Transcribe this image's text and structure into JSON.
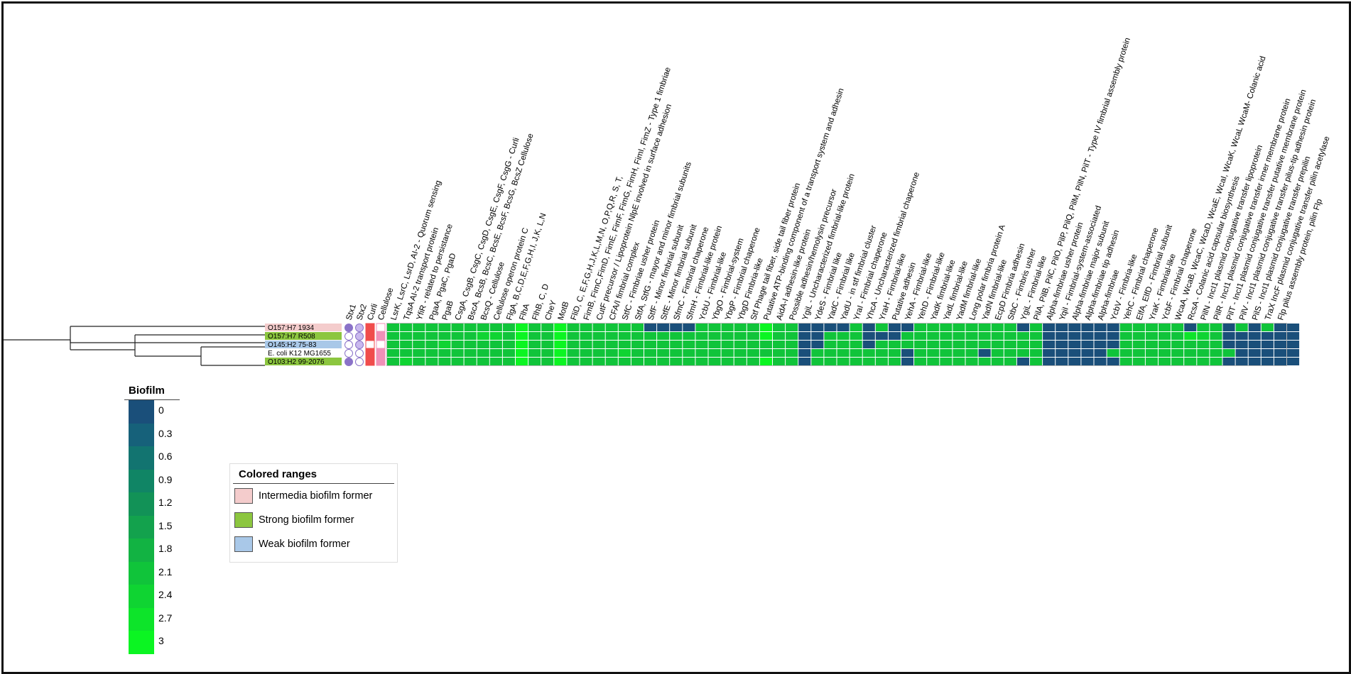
{
  "strains": [
    {
      "name": "O157:H7 1934",
      "range": "Intermedia biofilm former",
      "color": "#f4cccc"
    },
    {
      "name": "O157:H7 R508",
      "range": "Strong biofilm former",
      "color": "#8cc63f"
    },
    {
      "name": "O145:H2 75-83",
      "range": "Weak biofilm former",
      "color": "#a9c8e8"
    },
    {
      "name": "E. coli K12 MG1655",
      "range": "",
      "color": "#ffffff"
    },
    {
      "name": "O103:H2 99-2076",
      "range": "Strong biofilm former",
      "color": "#8cc63f"
    }
  ],
  "toxin_columns": [
    "Stx1",
    "Stx2",
    "Curli",
    "Cellulose"
  ],
  "toxin_values": [
    {
      "Stx1": "filled",
      "Stx2": "light",
      "Curli": "filled",
      "Cellulose": "empty"
    },
    {
      "Stx1": "empty",
      "Stx2": "light",
      "Curli": "filled",
      "Cellulose": "filled"
    },
    {
      "Stx1": "empty",
      "Stx2": "light",
      "Curli": "empty",
      "Cellulose": "empty"
    },
    {
      "Stx1": "empty",
      "Stx2": "empty",
      "Curli": "filled",
      "Cellulose": "filled"
    },
    {
      "Stx1": "filled",
      "Stx2": "empty",
      "Curli": "filled",
      "Cellulose": "filled"
    }
  ],
  "gene_columns": [
    "LsrK, LsrC, LsrD, AI-2 - Quorum sensing",
    "TqsA AI-2 transport protein",
    "YfiR - related to persistance",
    "PgaA, PgaC, PgaD",
    "PgaB",
    "CsgA, CsgB, CsgC, CsgD, CsgE, CsgF, CsgG - Curli",
    "BscA, BcsB, BcsC, BcsE, BcsF, BcsG, BcsZ Cellulose",
    "BcsQ - Cellulose",
    "Cellulose operon protein C",
    "FlgA, B,C,D,E,F,G,H,I, J,K, L,N",
    "FlhA",
    "FlhB, C, D",
    "CheY",
    "MotB",
    "FliD, C, E,F,G,H,J,K,L,M,N, O,P,Q,R, S, T,",
    "FimB, FimC,FimD, FimE, FimF, FimG, FimH, FimI, FimZ - Type 1 fimbriae",
    "CutF precursor / Lipoprotein NlpE involved in surface adhesion",
    "CFA/I fimbrial complex",
    "StfC - Fimbriae usher protein",
    "StfA, StfG - mayor and minor fimbrial subunits",
    "StfF - Minor fimbrial subunit",
    "StfE - Minor fimbrial subunit",
    "SfmC - Fimbrial chaperone",
    "SfmH - Fimbrial-like protein",
    "YcbU - Fimbrial-like",
    "YbgO - Fimbrial-system",
    "YbgP - Fimbrial chaperone",
    "YbgD Fimbria-like",
    "Stf Phage tail fiber, side tail fiber protein",
    "Putative ATP-binding component of a transport system and adhesin",
    "AidA-I adhesin-like protein",
    "Possible adhesin/hemolysin precursor",
    "YgiL - Uncharacterized fimbrial-like protein",
    "YdeS - Fimbrial like",
    "YadC - Fimbrial like",
    "YadU - in stf fimbrial cluster",
    "YraI - Fimbrial chaperone",
    "YhcA - Uncharacterized fimbrial chaperone",
    "YraH - Fimbrial-like",
    "Putative adhesin",
    "YehA - Fimbrial-like",
    "YehD - Fimbrial-like",
    "YadK fimbrial-like",
    "YadL fimbrial-like",
    "YadM fimbrial-like",
    "Long polar fimbria protein A",
    "YadN fimbrial-like",
    "EcpD Fimbria adhesin",
    "StbC - Fimbris usher",
    "YgiL - Fimbrial-like",
    "PilA, PilB, PilC, PilO, PilP, PilQ, PilM, PilN, PilT - Type IV fimbrial assembly protein",
    "Alpha-fimbriae usher protein",
    "YqiI - Fimbrial-system-associated",
    "Alpha-fimbriae major subunit",
    "Alpha-fimbriae tip adhesin",
    "Alpha-fimbriae",
    "YcbV - Fimbria-like",
    "YehC - Fimbrial chaperone",
    "ElfA, ElfD - Fimbrial subunit",
    "YraK - Fimbrial-like",
    "YcbF - Fimbrial chaperone",
    "WcaA, WcaB, WcaC, WcaD, WcaE, WcaI, WcaK, WcaL WcaM- Colanic acid",
    "RcsA - Colanic acid capsular biosynthesis",
    "PilN - IncI1 plasmid conjugative transfer lipoprotein",
    "PilR - IncI1 plasmid conjugative transfer inner membrane protein",
    "PilT - IncI1 plasmid conjugative transfer putative membrane protein",
    "PilV - IncI1 plasmid conjugative transfer pilus-tip adhesin protein",
    "PilS - IncI1 plasmid conjugative transfer prepilin",
    "TraX IncF plasmid conjugative transfer pilin acetylase",
    "Flp pilus assembly protein, pilin Flp"
  ],
  "heatmap_values": [
    [
      2,
      2,
      2,
      2,
      2,
      2,
      2,
      2,
      2,
      2,
      3,
      2,
      2,
      3,
      2,
      2,
      2,
      2,
      2,
      2,
      2,
      2,
      2,
      2,
      2,
      2,
      2,
      2,
      2,
      2,
      2,
      2,
      2,
      2,
      2,
      2,
      2,
      2,
      2,
      2,
      2,
      2,
      2,
      2,
      2,
      2,
      2,
      2,
      2,
      2,
      2,
      2,
      2,
      2,
      2,
      2,
      2,
      2,
      2,
      2,
      2,
      2,
      2,
      2,
      2,
      2,
      2,
      2,
      2,
      2,
      2
    ],
    [
      2,
      2,
      2,
      2,
      2,
      2,
      2,
      2,
      2,
      2,
      3,
      2,
      2,
      3,
      2,
      2,
      2,
      2,
      2,
      2,
      2,
      2,
      2,
      2,
      2,
      2,
      2,
      2,
      2,
      2,
      2,
      2,
      2,
      2,
      2,
      2,
      2,
      2,
      2,
      2,
      2,
      2,
      2,
      2,
      2,
      2,
      2,
      2,
      2,
      2,
      2,
      2,
      2,
      2,
      2,
      2,
      2,
      2,
      2,
      2,
      2,
      2,
      2,
      2,
      2,
      2,
      2,
      2,
      2,
      2,
      2
    ],
    [
      2,
      2,
      2,
      2,
      2,
      2,
      2,
      2,
      2,
      2,
      3,
      2,
      2,
      3,
      2,
      2,
      2,
      2,
      2,
      2,
      2,
      2,
      2,
      2,
      2,
      2,
      2,
      2,
      2,
      2,
      2,
      2,
      2,
      2,
      2,
      2,
      2,
      2,
      2,
      2,
      2,
      2,
      2,
      2,
      2,
      2,
      2,
      2,
      2,
      2,
      2,
      2,
      2,
      2,
      2,
      2,
      2,
      2,
      2,
      2,
      2,
      2,
      2,
      2,
      2,
      2,
      2,
      2,
      2,
      2,
      2
    ],
    [
      2,
      2,
      2,
      2,
      2,
      2,
      2,
      2,
      2,
      2,
      3,
      2,
      2,
      3,
      2,
      2,
      2,
      2,
      2,
      2,
      2,
      2,
      2,
      2,
      2,
      2,
      2,
      2,
      2,
      2,
      2,
      2,
      2,
      2,
      2,
      2,
      2,
      2,
      2,
      2,
      2,
      2,
      2,
      2,
      2,
      2,
      2,
      2,
      2,
      2,
      2,
      2,
      2,
      2,
      2,
      2,
      2,
      2,
      2,
      2,
      2,
      2,
      2,
      2,
      2,
      2,
      2,
      2,
      2,
      2,
      2
    ],
    [
      2,
      2,
      2,
      2,
      2,
      2,
      2,
      2,
      2,
      2,
      3,
      2,
      2,
      3,
      2,
      2,
      2,
      2,
      2,
      2,
      2,
      2,
      2,
      2,
      2,
      2,
      2,
      2,
      2,
      2,
      2,
      2,
      2,
      2,
      2,
      2,
      2,
      2,
      2,
      2,
      2,
      2,
      2,
      2,
      2,
      2,
      2,
      2,
      2,
      2,
      2,
      2,
      2,
      2,
      2,
      2,
      2,
      2,
      2,
      2,
      2,
      2,
      2,
      2,
      2,
      2,
      2,
      2,
      2,
      2,
      2
    ]
  ],
  "heatmap_overrides": [
    {
      "r": 0,
      "cells": [
        [
          20,
          0
        ],
        [
          21,
          0
        ],
        [
          22,
          0
        ],
        [
          23,
          0
        ],
        [
          29,
          3
        ],
        [
          32,
          0
        ],
        [
          33,
          0
        ],
        [
          34,
          0
        ],
        [
          35,
          0
        ],
        [
          37,
          0
        ],
        [
          39,
          0
        ],
        [
          40,
          0
        ],
        [
          49,
          0
        ],
        [
          51,
          0
        ],
        [
          52,
          0
        ],
        [
          53,
          0
        ],
        [
          54,
          0
        ],
        [
          55,
          0
        ],
        [
          56,
          0
        ],
        [
          62,
          0
        ],
        [
          65,
          0
        ],
        [
          67,
          0
        ],
        [
          69,
          0
        ],
        [
          70,
          0
        ]
      ]
    },
    {
      "r": 1,
      "cells": [
        [
          7,
          2.4
        ],
        [
          8,
          2.4
        ],
        [
          29,
          3
        ],
        [
          32,
          0
        ],
        [
          33,
          0
        ],
        [
          37,
          0
        ],
        [
          38,
          0
        ],
        [
          39,
          0
        ],
        [
          51,
          0
        ],
        [
          52,
          0
        ],
        [
          53,
          0
        ],
        [
          54,
          0
        ],
        [
          55,
          0
        ],
        [
          56,
          0
        ],
        [
          62,
          2.7
        ],
        [
          63,
          2.4
        ],
        [
          65,
          0
        ],
        [
          66,
          0
        ],
        [
          67,
          0
        ],
        [
          68,
          0
        ],
        [
          69,
          0
        ],
        [
          70,
          0
        ]
      ]
    },
    {
      "r": 2,
      "cells": [
        [
          4,
          2.4
        ],
        [
          32,
          0
        ],
        [
          33,
          0
        ],
        [
          37,
          0
        ],
        [
          51,
          0
        ],
        [
          52,
          0
        ],
        [
          53,
          0
        ],
        [
          54,
          0
        ],
        [
          55,
          0
        ],
        [
          56,
          0
        ],
        [
          65,
          0
        ],
        [
          66,
          0
        ],
        [
          67,
          0
        ],
        [
          68,
          0
        ],
        [
          69,
          0
        ],
        [
          70,
          0
        ]
      ]
    },
    {
      "r": 3,
      "cells": [
        [
          18,
          2.4
        ],
        [
          32,
          0
        ],
        [
          40,
          0
        ],
        [
          46,
          0
        ],
        [
          51,
          0
        ],
        [
          52,
          0
        ],
        [
          53,
          0
        ],
        [
          54,
          0
        ],
        [
          55,
          0
        ],
        [
          66,
          0
        ],
        [
          67,
          0
        ],
        [
          68,
          0
        ],
        [
          69,
          0
        ],
        [
          70,
          0
        ]
      ]
    },
    {
      "r": 4,
      "cells": [
        [
          1,
          2.4
        ],
        [
          29,
          3
        ],
        [
          32,
          0
        ],
        [
          40,
          0
        ],
        [
          49,
          0
        ],
        [
          51,
          0
        ],
        [
          52,
          0
        ],
        [
          53,
          0
        ],
        [
          54,
          0
        ],
        [
          55,
          0
        ],
        [
          56,
          0
        ],
        [
          65,
          0
        ],
        [
          66,
          0
        ],
        [
          67,
          0
        ],
        [
          68,
          0
        ],
        [
          69,
          0
        ],
        [
          70,
          0
        ]
      ]
    }
  ],
  "biofilm_legend": {
    "title": "Biofilm",
    "scale": [
      {
        "label": "0",
        "color": "#1a4f7a"
      },
      {
        "label": "0.3",
        "color": "#16617a"
      },
      {
        "label": "0.6",
        "color": "#127470"
      },
      {
        "label": "0.9",
        "color": "#108565"
      },
      {
        "label": "1.2",
        "color": "#129257"
      },
      {
        "label": "1.5",
        "color": "#13a24d"
      },
      {
        "label": "1.8",
        "color": "#12b343"
      },
      {
        "label": "2.1",
        "color": "#10c43a"
      },
      {
        "label": "2.4",
        "color": "#0fd432"
      },
      {
        "label": "2.7",
        "color": "#0de42a"
      },
      {
        "label": "3",
        "color": "#0bf522"
      }
    ]
  },
  "ranges_legend": {
    "title": "Colored ranges",
    "items": [
      {
        "label": "Intermedia biofilm former",
        "color": "#f4cccc"
      },
      {
        "label": "Strong biofilm former",
        "color": "#8cc63f"
      },
      {
        "label": "Weak biofilm former",
        "color": "#a9c8e8"
      }
    ]
  }
}
